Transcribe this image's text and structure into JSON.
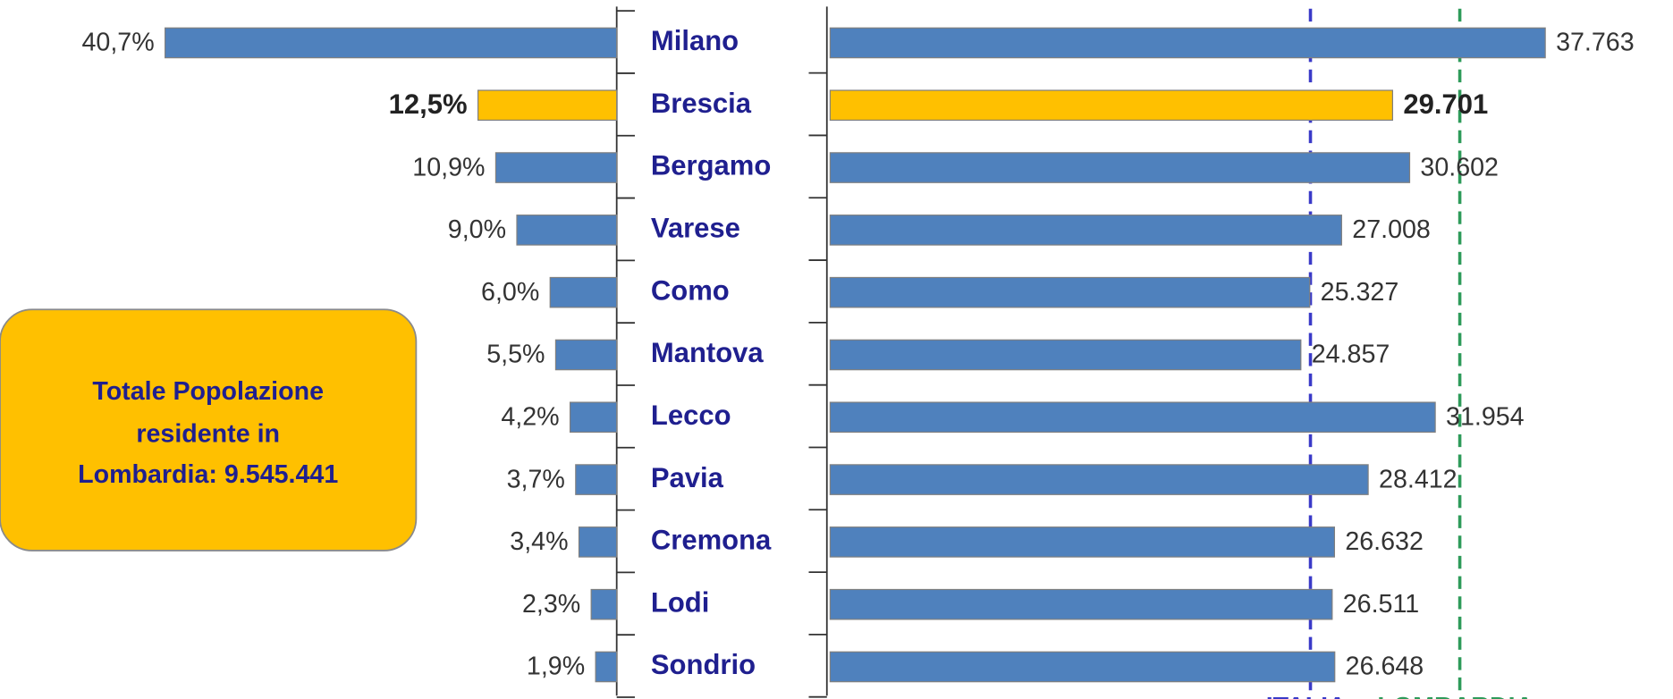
{
  "chart_data": [
    {
      "type": "bar",
      "orientation": "horizontal",
      "direction": "left",
      "categories": [
        "Milano",
        "Brescia",
        "Bergamo",
        "Varese",
        "Como",
        "Mantova",
        "Lecco",
        "Pavia",
        "Cremona",
        "Lodi",
        "Sondrio"
      ],
      "values": [
        40.7,
        12.5,
        10.9,
        9.0,
        6.0,
        5.5,
        4.2,
        3.7,
        3.4,
        2.3,
        1.9
      ],
      "value_labels": [
        "40,7%",
        "12,5%",
        "10,9%",
        "9,0%",
        "6,0%",
        "5,5%",
        "4,2%",
        "3,7%",
        "3,4%",
        "2,3%",
        "1,9%"
      ],
      "color": "#4F81BD",
      "highlight": 1,
      "highlight_color": "#FFC000",
      "xlim": [
        0,
        45
      ]
    },
    {
      "type": "bar",
      "orientation": "horizontal",
      "direction": "right",
      "values": [
        37763,
        29701,
        30602,
        27008,
        25327,
        24857,
        31954,
        28412,
        26632,
        26511,
        26648
      ],
      "value_labels": [
        "37.763",
        "29.701",
        "30.602",
        "27.008",
        "25.327",
        "24.857",
        "31.954",
        "28.412",
        "26.632",
        "26.511",
        "26.648"
      ],
      "color": "#4F81BD",
      "highlight": 1,
      "highlight_color": "#FFC000",
      "xlim": [
        0,
        40000
      ],
      "reference_lines": [
        {
          "label": "ITALIA:",
          "value": 25363,
          "color": "#3A3AC8"
        },
        {
          "label": "LOMBARDIA:",
          "value": 33250,
          "color": "#2E9B5A"
        }
      ]
    }
  ],
  "annotation": [
    "Totale Popolazione",
    "residente in",
    "Lombardia: 9.545.441"
  ]
}
